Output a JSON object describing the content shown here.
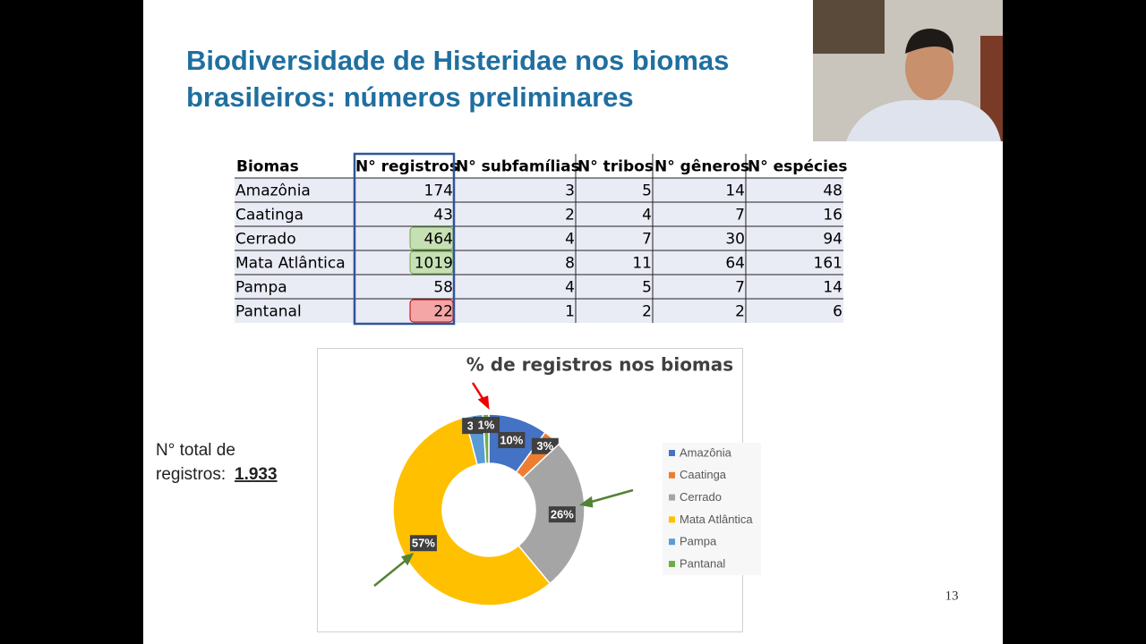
{
  "slide": {
    "title": [
      "Biodiversidade de Histeridae nos biomas",
      "brasileiros: números preliminares"
    ],
    "table": {
      "header": [
        "Biomas",
        "N° registros",
        "N° subfamílias",
        "N° tribos",
        "N° gêneros",
        "N° espécies"
      ],
      "rows": [
        [
          "Amazônia",
          174,
          3,
          5,
          14,
          48
        ],
        [
          "Caatinga",
          43,
          2,
          4,
          7,
          16
        ],
        [
          "Cerrado",
          464,
          4,
          7,
          30,
          94
        ],
        [
          "Mata Atlântica",
          1019,
          8,
          11,
          64,
          161
        ],
        [
          "Pampa",
          58,
          4,
          5,
          7,
          14
        ],
        [
          "Pantanal",
          22,
          1,
          2,
          2,
          6
        ]
      ]
    },
    "total_label": [
      "N° total de",
      "registros:"
    ],
    "total_value": "1.933",
    "page_number": "13"
  },
  "chart_data": {
    "type": "donut",
    "title": "% de registros nos biomas",
    "categories": [
      "Amazônia",
      "Caatinga",
      "Cerrado",
      "Mata Atlântica",
      "Pampa",
      "Pantanal"
    ],
    "values": [
      10,
      3,
      26,
      57,
      3,
      1
    ],
    "value_labels": [
      "10%",
      "3%",
      "26%",
      "57%",
      "3%",
      "1%"
    ],
    "colors": [
      "#4472c4",
      "#ed7d31",
      "#a5a5a5",
      "#ffc000",
      "#5b9bd5",
      "#70ad47"
    ],
    "legend": "right"
  }
}
